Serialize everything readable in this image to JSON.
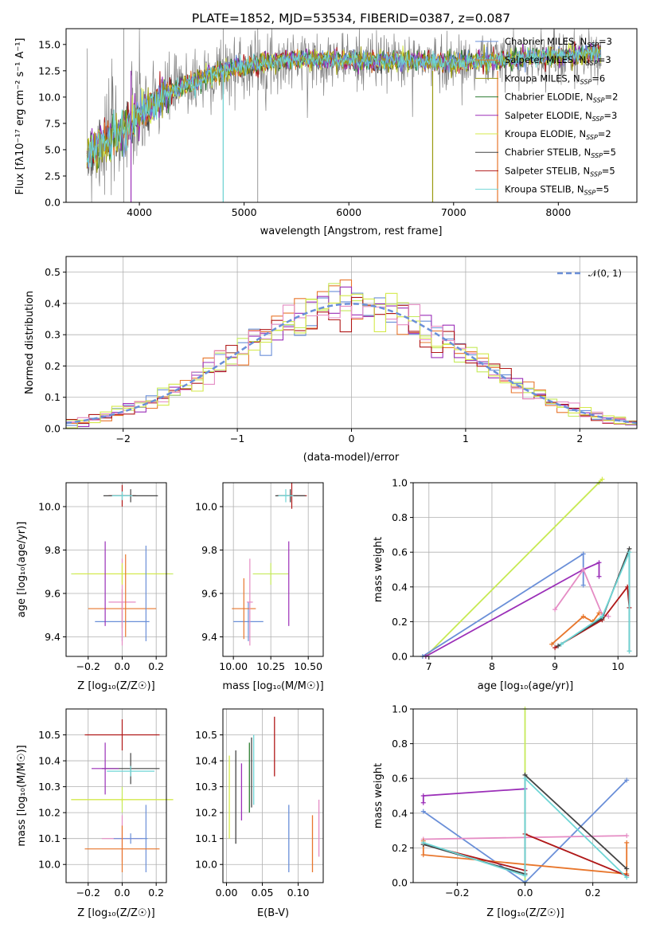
{
  "figure": {
    "title": "PLATE=1852, MJD=53534, FIBERID=0387, z=0.087"
  },
  "colors": {
    "Chabrier MILES": "#6a8fd8",
    "Salpeter MILES": "#e8762c",
    "Kroupa MILES": "#9a9a10",
    "Chabrier ELODIE": "#2e7d32",
    "Salpeter ELODIE": "#9b2fb8",
    "Kroupa ELODIE": "#d4e94a",
    "Chabrier STELIB": "#444444",
    "Salpeter STELIB": "#b01818",
    "Kroupa STELIB": "#6fd6d6",
    "data": "#808080",
    "pink": "#e58cc4",
    "lime": "#c5ea5a"
  },
  "chart_data": [
    {
      "type": "line",
      "id": "spectrum",
      "title": "PLATE=1852, MJD=53534, FIBERID=0387, z=0.087",
      "xlabel": "wavelength [Angstrom, rest frame]",
      "ylabel": "Flux [fλ10⁻¹⁷ erg cm⁻² s⁻¹ A⁻¹]",
      "xlim": [
        3300,
        8750
      ],
      "ylim": [
        0,
        16.5
      ],
      "xticks": [
        "4000",
        "5000",
        "6000",
        "7000",
        "8000"
      ],
      "yticks": [
        "0.0",
        "2.5",
        "5.0",
        "7.5",
        "10.0",
        "12.5",
        "15.0"
      ],
      "legend_position": "right",
      "legend": [
        {
          "label": "Chabrier MILES, N",
          "sub": "SSP",
          "tail": "=3"
        },
        {
          "label": "Salpeter MILES, N",
          "sub": "SSP",
          "tail": "=3"
        },
        {
          "label": "Kroupa MILES, N",
          "sub": "SSP",
          "tail": "=6"
        },
        {
          "label": "Chabrier ELODIE, N",
          "sub": "SSP",
          "tail": "=2"
        },
        {
          "label": "Salpeter ELODIE, N",
          "sub": "SSP",
          "tail": "=3"
        },
        {
          "label": "Kroupa ELODIE, N",
          "sub": "SSP",
          "tail": "=2"
        },
        {
          "label": "Chabrier STELIB, N",
          "sub": "SSP",
          "tail": "=5"
        },
        {
          "label": "Salpeter STELIB, N",
          "sub": "SSP",
          "tail": "=5"
        },
        {
          "label": "Kroupa STELIB, N",
          "sub": "SSP",
          "tail": "=5"
        }
      ],
      "continuum": {
        "x": [
          3500,
          3800,
          4000,
          4300,
          4700,
          5000,
          5500,
          6000,
          6500,
          7000,
          7500,
          8000,
          8400
        ],
        "y": [
          4.5,
          6.5,
          8.3,
          10.5,
          12.2,
          13.0,
          13.6,
          13.5,
          13.4,
          13.3,
          13.6,
          13.9,
          14.1
        ]
      }
    },
    {
      "type": "step",
      "id": "residuals",
      "xlabel": "(data-model)/error",
      "ylabel": "Normed distribution",
      "xlim": [
        -2.5,
        2.5
      ],
      "ylim": [
        0,
        0.55
      ],
      "xticks": [
        "−2",
        "−1",
        "0",
        "1",
        "2"
      ],
      "yticks": [
        "0.0",
        "0.1",
        "0.2",
        "0.3",
        "0.4",
        "0.5"
      ],
      "legend": "𝒩(0, 1)",
      "legend_position": "top-right"
    },
    {
      "type": "scatter",
      "id": "age-vs-Z",
      "xlabel": "Z [log₁₀(Z/Z☉)]",
      "ylabel": "age  [log₁₀(age/yr)]",
      "xlim": [
        -0.33,
        0.26
      ],
      "ylim": [
        9.31,
        10.11
      ],
      "xticks": [
        "−0.2",
        "0.0",
        "0.2"
      ],
      "yticks": [
        "9.4",
        "9.6",
        "9.8",
        "10.0"
      ],
      "points": [
        {
          "model": "Chabrier MILES",
          "x": 0.0,
          "xerr": 0.16,
          "y": 9.47,
          "yerr": 0.09
        },
        {
          "model": "Kroupa ELODIE",
          "x": 0.0,
          "xerr": 0.3,
          "y": 9.69,
          "yerr": 0.04
        },
        {
          "model": "Salpeter STELIB",
          "x": 0.0,
          "xerr": 0.08,
          "y": 10.05,
          "yerr": 0.05
        }
      ]
    },
    {
      "type": "scatter",
      "id": "age-vs-mass",
      "xlabel": "mass [log₁₀(M/M☉)]",
      "ylabel": "",
      "xlim": [
        9.93,
        10.6
      ],
      "ylim": [
        9.31,
        10.11
      ],
      "xticks": [
        "10.00",
        "10.25",
        "10.50"
      ],
      "yticks": [
        "9.4",
        "9.6",
        "9.8",
        "10.0"
      ]
    },
    {
      "type": "line",
      "id": "mass-weight-vs-age",
      "xlabel": "age  [log₁₀(age/yr)]",
      "ylabel": "mass weight",
      "xlim": [
        6.75,
        10.3
      ],
      "ylim": [
        0,
        1
      ],
      "xticks": [
        "7",
        "8",
        "9",
        "10"
      ],
      "yticks": [
        "0.0",
        "0.2",
        "0.4",
        "0.6",
        "0.8",
        "1.0"
      ]
    },
    {
      "type": "scatter",
      "id": "mass-vs-Z",
      "xlabel": "Z [log₁₀(Z/Z☉)]",
      "ylabel": "mass [log₁₀(M/M☉)]",
      "xlim": [
        -0.33,
        0.26
      ],
      "ylim": [
        9.93,
        10.6
      ],
      "xticks": [
        "−0.2",
        "0.0",
        "0.2"
      ],
      "yticks": [
        "10.0",
        "10.1",
        "10.2",
        "10.3",
        "10.4",
        "10.5"
      ]
    },
    {
      "type": "scatter",
      "id": "mass-vs-EBV",
      "xlabel": "E(B-V)",
      "ylabel": "",
      "xlim": [
        -0.005,
        0.135
      ],
      "ylim": [
        9.93,
        10.6
      ],
      "xticks": [
        "0.00",
        "0.05",
        "0.10"
      ],
      "yticks": [
        "10.0",
        "10.1",
        "10.2",
        "10.3",
        "10.4",
        "10.5"
      ]
    },
    {
      "type": "line",
      "id": "mass-weight-vs-Z",
      "xlabel": "Z [log₁₀(Z/Z☉)]",
      "ylabel": "mass weight",
      "xlim": [
        -0.33,
        0.33
      ],
      "ylim": [
        0,
        1
      ],
      "xticks": [
        "−0.2",
        "0.0",
        "0.2"
      ],
      "yticks": [
        "0.0",
        "0.2",
        "0.4",
        "0.6",
        "0.8",
        "1.0"
      ]
    }
  ]
}
